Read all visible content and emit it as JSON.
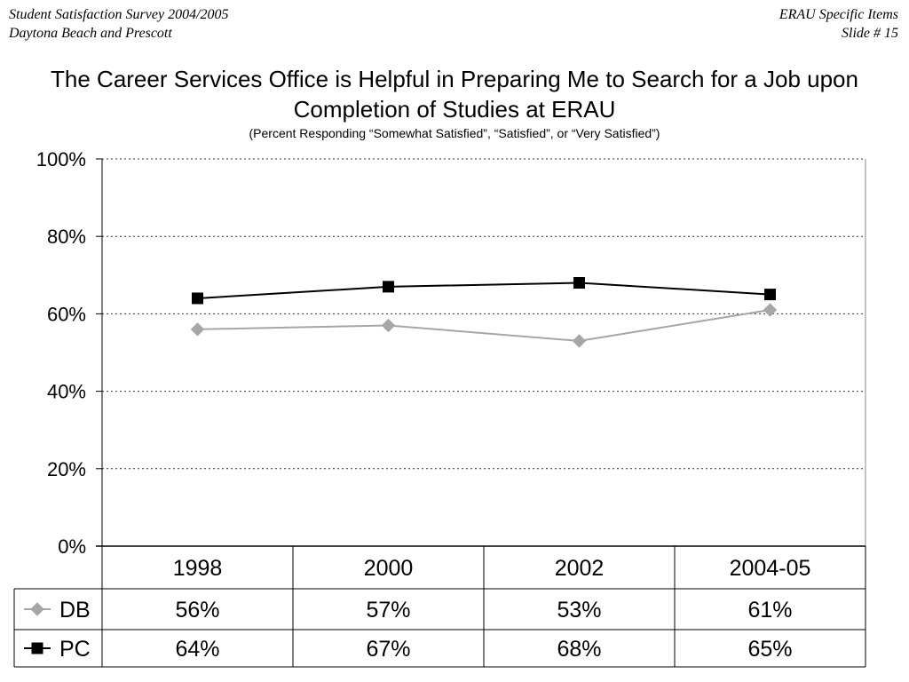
{
  "header": {
    "left_line1": "Student Satisfaction Survey 2004/2005",
    "left_line2": "Daytona Beach and Prescott",
    "right_line1": "ERAU Specific Items",
    "right_line2": "Slide # 15"
  },
  "chart_data": {
    "type": "line",
    "title": "The Career Services Office is Helpful in Preparing Me to Search for a Job upon Completion of Studies at ERAU",
    "subtitle": "(Percent Responding “Somewhat Satisfied”, “Satisfied”, or “Very Satisfied”)",
    "categories": [
      "1998",
      "2000",
      "2002",
      "2004-05"
    ],
    "y_ticks": [
      "100%",
      "80%",
      "60%",
      "40%",
      "20%",
      "0%"
    ],
    "ylim": [
      0,
      100
    ],
    "grid": true,
    "grid_style": "dotted",
    "legend_placement": "data-table",
    "series": [
      {
        "name": "DB",
        "values": [
          56,
          57,
          53,
          61
        ],
        "labels": [
          "56%",
          "57%",
          "53%",
          "61%"
        ],
        "color": "#a6a6a6",
        "marker": "diamond"
      },
      {
        "name": "PC",
        "values": [
          64,
          67,
          68,
          65
        ],
        "labels": [
          "64%",
          "67%",
          "68%",
          "65%"
        ],
        "color": "#000000",
        "marker": "square"
      }
    ]
  }
}
